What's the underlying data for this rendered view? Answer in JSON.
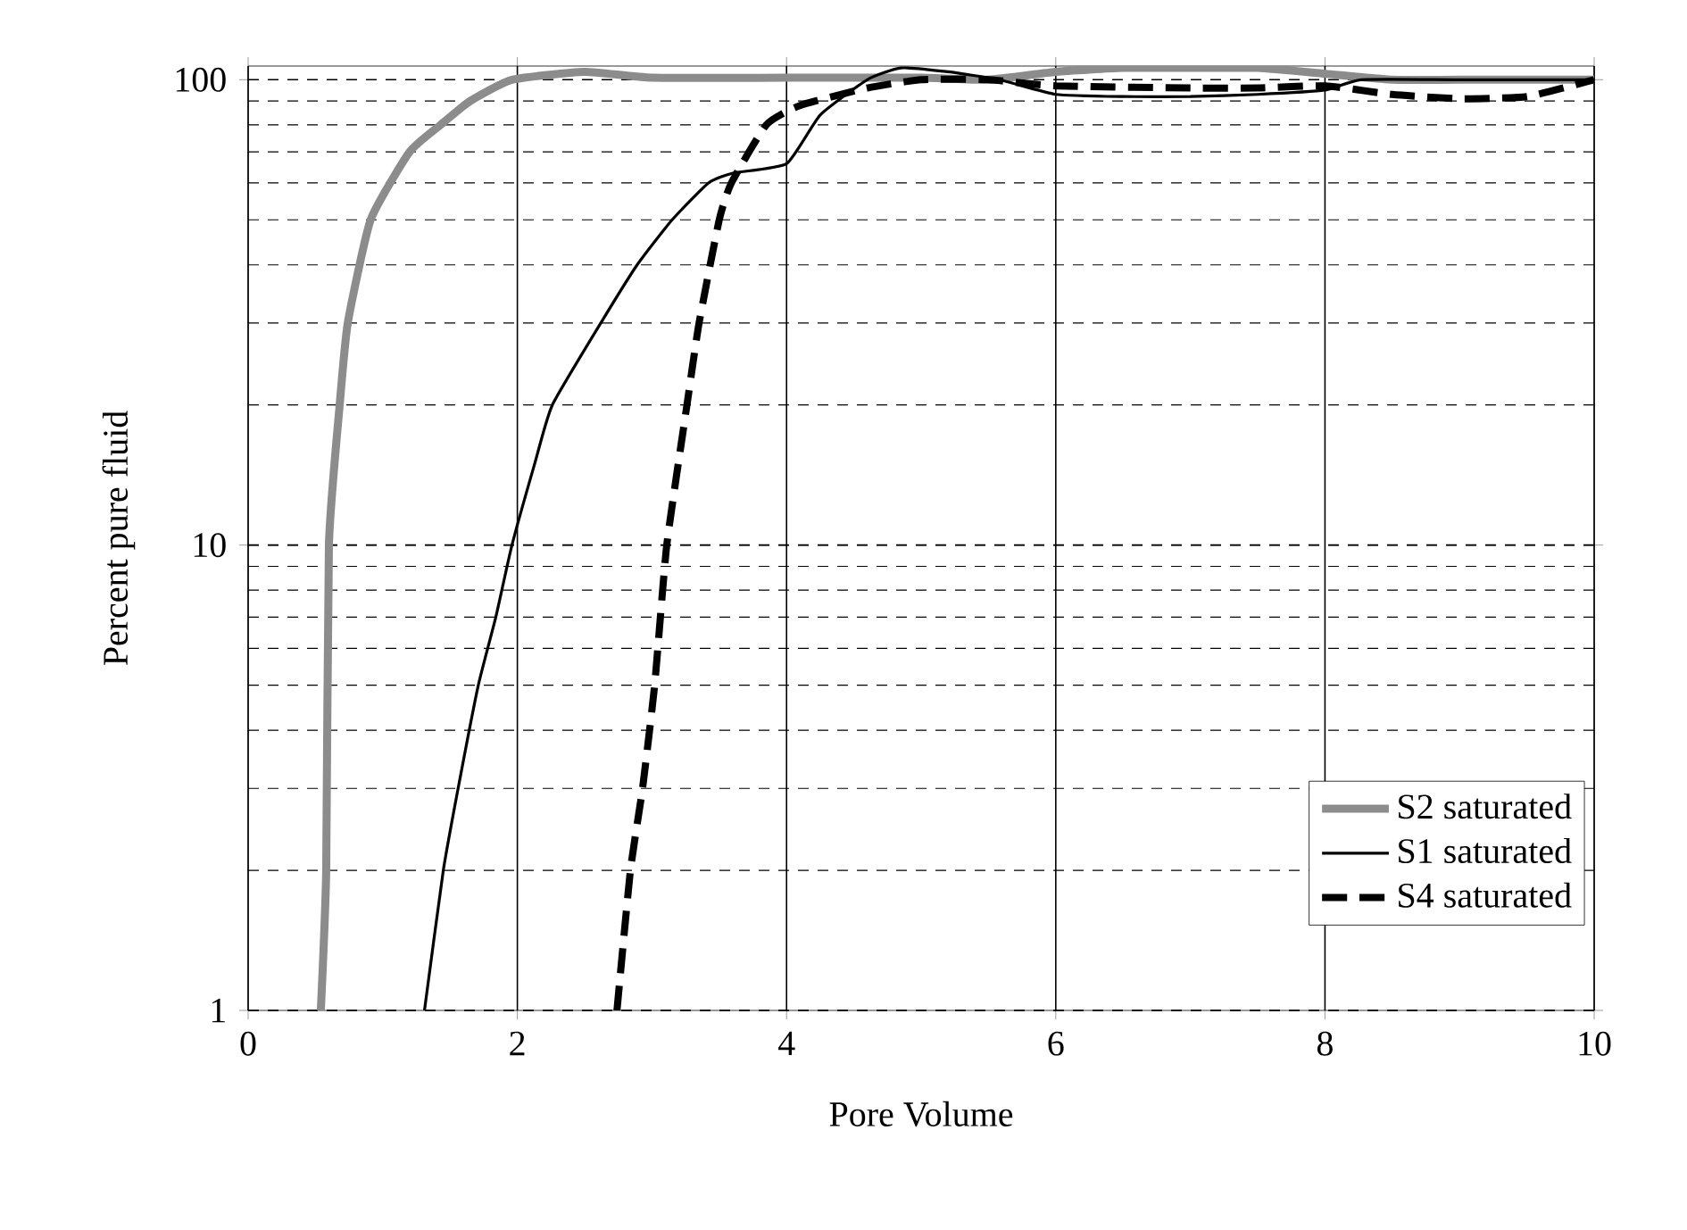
{
  "chart_data": {
    "type": "line",
    "xlabel": "Pore Volume",
    "ylabel": "Percent pure fluid",
    "log": "y",
    "xlim": [
      0,
      10
    ],
    "xticks": [
      0,
      2,
      4,
      6,
      8,
      10
    ],
    "ylim": [
      1,
      107
    ],
    "yticks": [
      1,
      10,
      100
    ],
    "grid": true,
    "legend": "bottom right",
    "marker": "none",
    "series": [
      {
        "name": "S2 saturated",
        "color": "#8c8c8c",
        "line_style": "solid",
        "x": [
          0.54,
          0.58,
          0.6,
          0.68,
          0.74,
          0.91,
          1.2,
          1.43,
          1.65,
          1.96,
          2.5,
          3.0,
          4.0,
          5.0,
          5.5,
          6.0,
          6.5,
          7.0,
          7.5,
          8.0,
          8.5,
          9.0,
          10.0
        ],
        "values": [
          1,
          2,
          10,
          20,
          30,
          50,
          70,
          80,
          90,
          100,
          104,
          101,
          101,
          101,
          100,
          104,
          106,
          106,
          106,
          103,
          100,
          100,
          100
        ]
      },
      {
        "name": "S1 saturated",
        "color": "#000000",
        "line_style": "solid",
        "x": [
          1.31,
          1.45,
          1.56,
          1.71,
          1.84,
          1.96,
          2.13,
          2.26,
          2.62,
          2.89,
          3.15,
          3.42,
          3.6,
          4.0,
          4.25,
          4.6,
          4.85,
          5.2,
          5.58,
          6.0,
          6.5,
          7.0,
          7.5,
          8.0,
          8.27,
          9.0,
          10.0
        ],
        "values": [
          1,
          2,
          3,
          5,
          7,
          10,
          15,
          20,
          30,
          40,
          50,
          60,
          63,
          66,
          84,
          100,
          106,
          104,
          100,
          93,
          92,
          92,
          93,
          95,
          100,
          100,
          100
        ]
      },
      {
        "name": "S4 saturated",
        "color": "#000000",
        "line_style": "dashed",
        "x": [
          2.74,
          2.84,
          2.93,
          3.02,
          3.11,
          3.26,
          3.35,
          3.5,
          3.59,
          3.85,
          4.1,
          4.6,
          5.0,
          5.5,
          6.0,
          7.0,
          7.5,
          8.0,
          8.5,
          9.0,
          9.5,
          10.0
        ],
        "values": [
          1,
          2,
          3,
          5,
          10,
          20,
          30,
          50,
          60,
          80,
          88,
          96,
          100,
          100,
          97,
          96,
          96,
          97,
          93,
          91,
          92,
          100
        ]
      }
    ]
  }
}
